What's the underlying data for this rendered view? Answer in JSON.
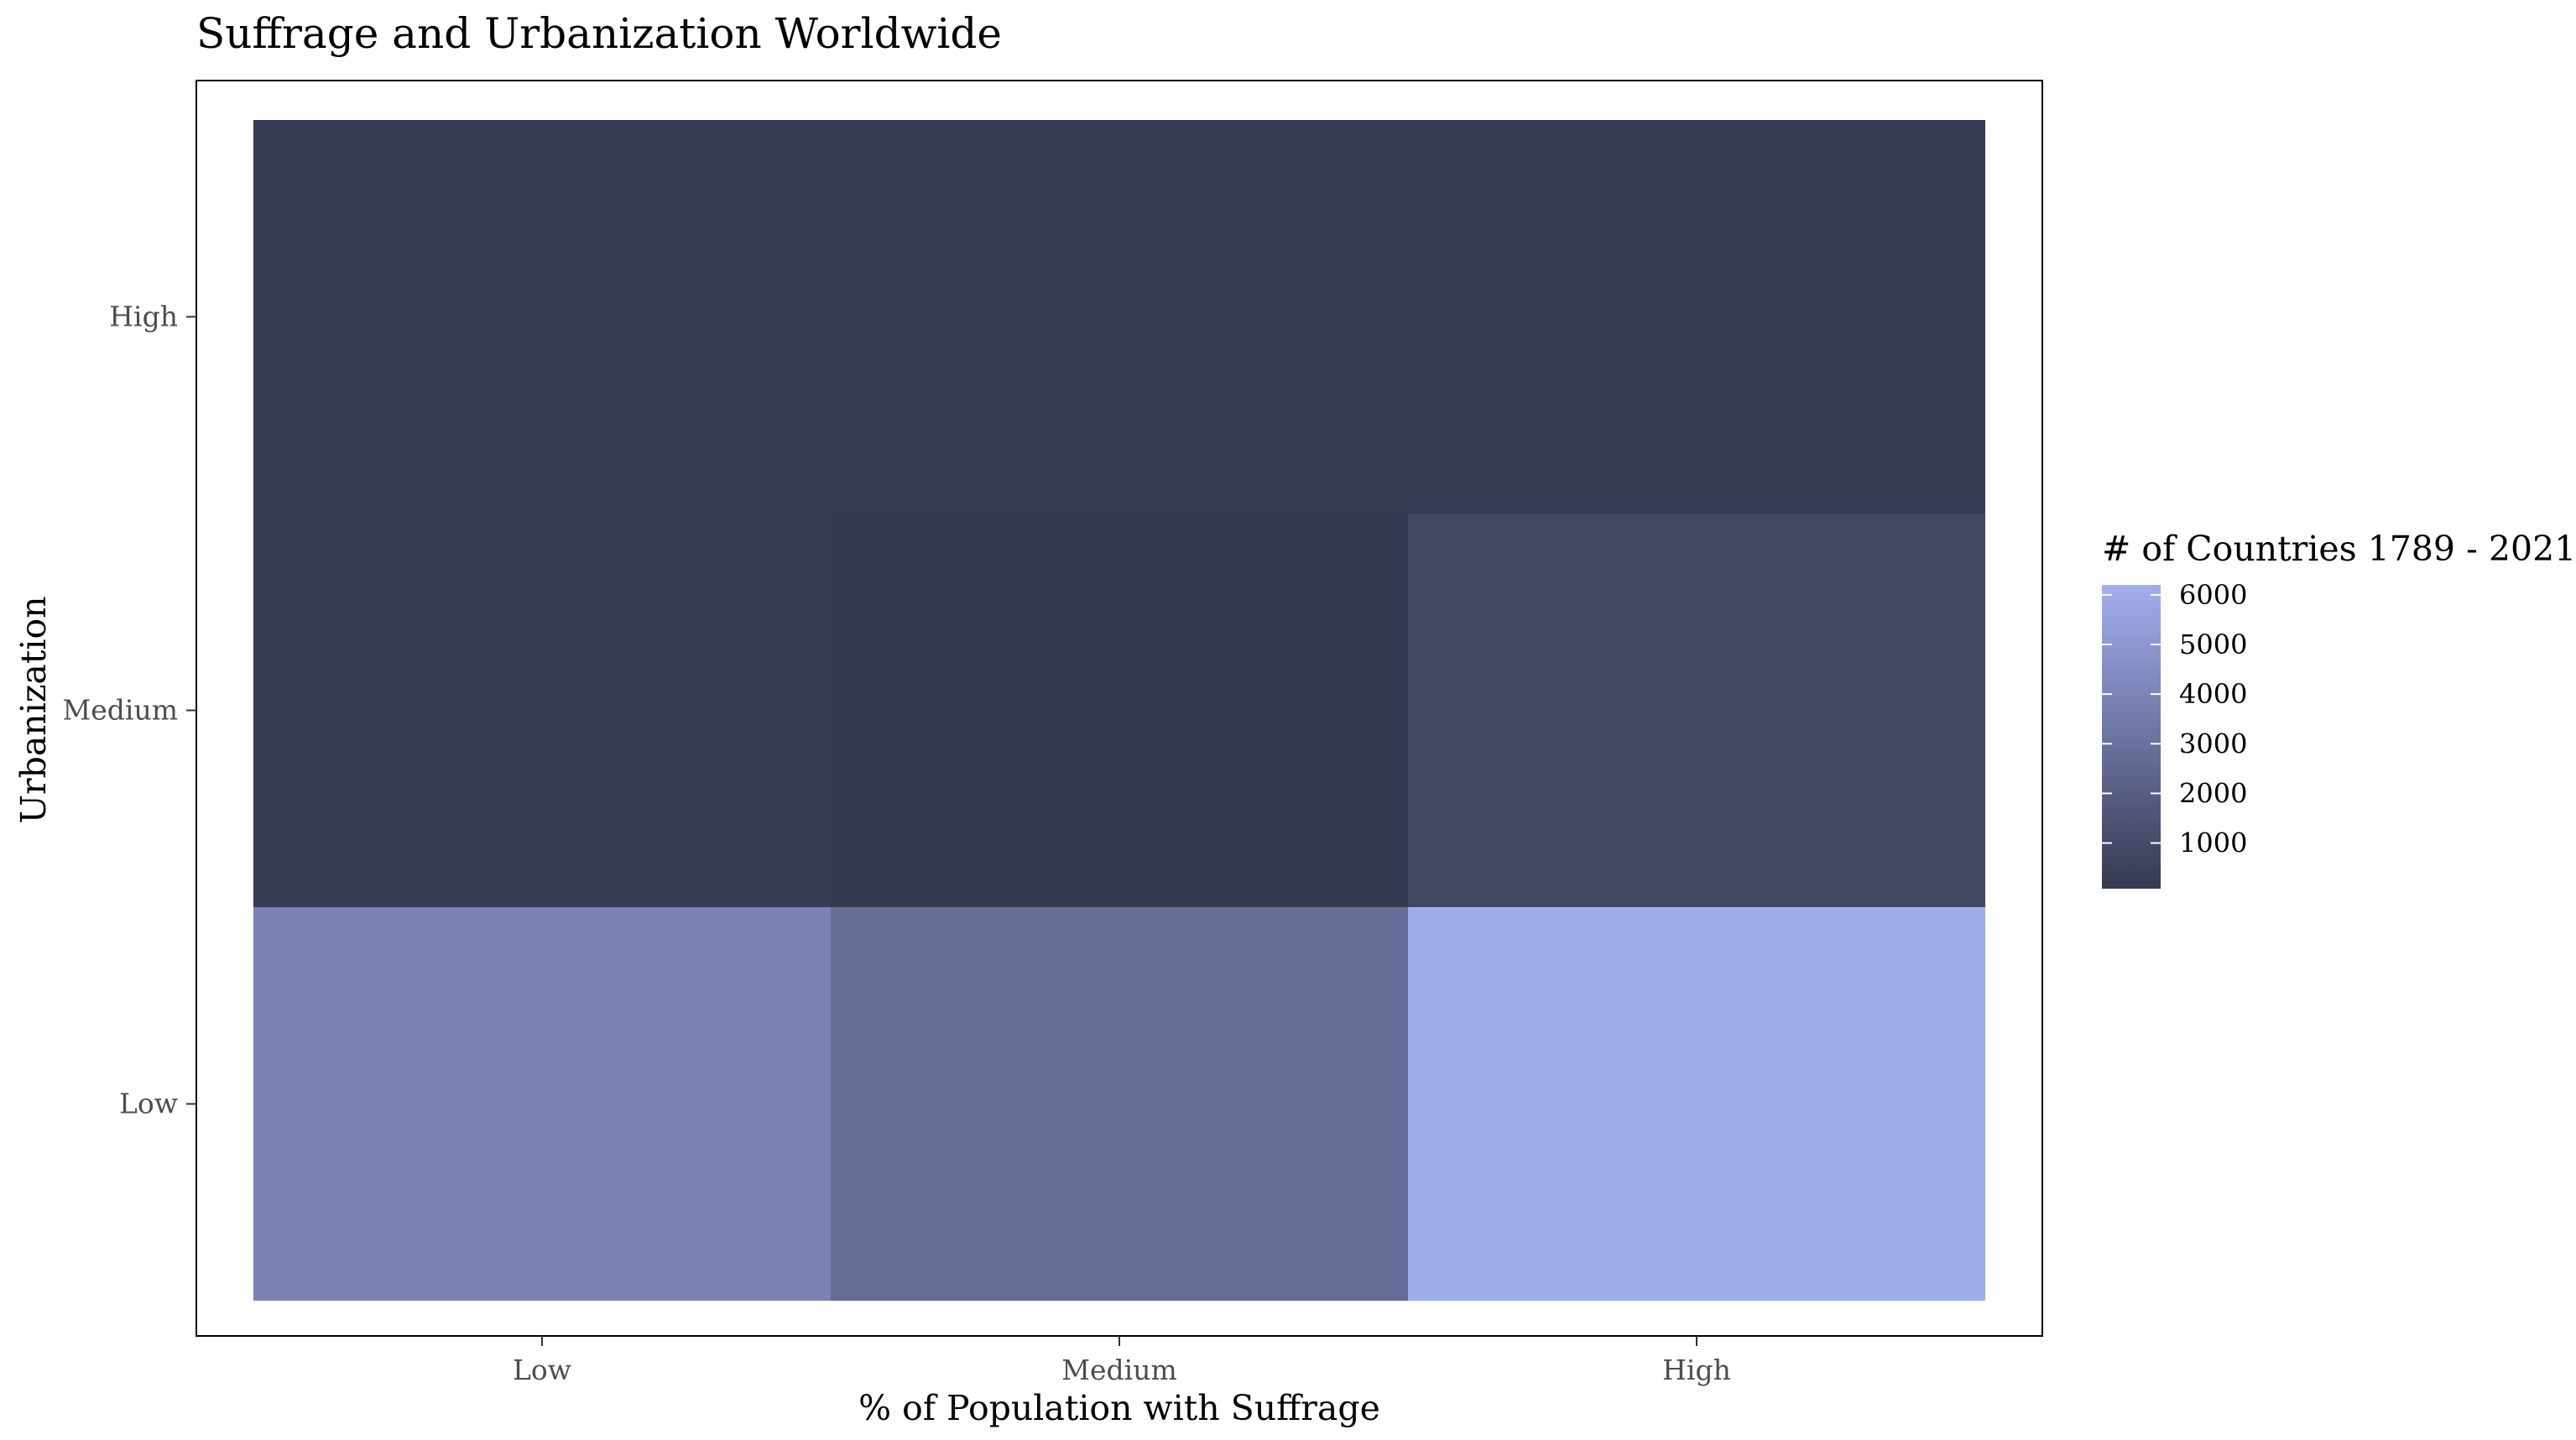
{
  "chart_data": {
    "type": "heatmap",
    "title": "Suffrage and Urbanization Worldwide",
    "xlabel": "% of Population with Suffrage",
    "ylabel": "Urbanization",
    "x_categories": [
      "Low",
      "Medium",
      "High"
    ],
    "y_categories": [
      "Low",
      "Medium",
      "High"
    ],
    "cells": [
      {
        "x": "Low",
        "y": "High",
        "value": 150
      },
      {
        "x": "Medium",
        "y": "High",
        "value": 150
      },
      {
        "x": "High",
        "y": "High",
        "value": 200
      },
      {
        "x": "Low",
        "y": "Medium",
        "value": 150
      },
      {
        "x": "Medium",
        "y": "Medium",
        "value": 100
      },
      {
        "x": "High",
        "y": "Medium",
        "value": 800
      },
      {
        "x": "Low",
        "y": "Low",
        "value": 3900
      },
      {
        "x": "Medium",
        "y": "Low",
        "value": 2800
      },
      {
        "x": "High",
        "y": "Low",
        "value": 6100
      }
    ],
    "legend": {
      "title": "# of Countries 1789 - 2021",
      "ticks": [
        1000,
        2000,
        3000,
        4000,
        5000,
        6000
      ],
      "tick_labels": [
        "1000",
        "2000",
        "3000",
        "4000",
        "5000",
        "6000"
      ],
      "range": [
        80,
        6200
      ],
      "low_color": "#353951",
      "high_color": "#a3aeee",
      "position": "right"
    },
    "grid": false
  }
}
